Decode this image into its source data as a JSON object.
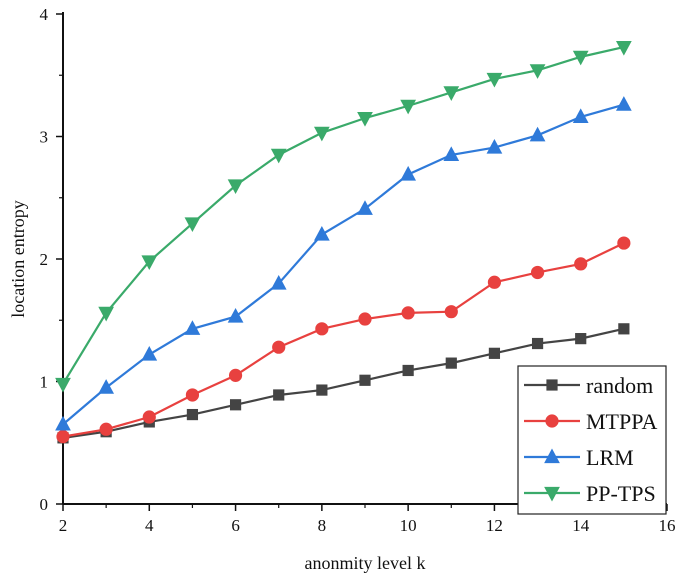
{
  "chart_data": {
    "type": "line",
    "title": "",
    "xlabel": "anonmity level k",
    "ylabel": "location entropy",
    "xlim": [
      2,
      16
    ],
    "ylim": [
      0,
      4
    ],
    "xticks": [
      2,
      4,
      6,
      8,
      10,
      12,
      14,
      16
    ],
    "yticks": [
      0,
      1,
      2,
      3,
      4
    ],
    "x": [
      2,
      3,
      4,
      5,
      6,
      7,
      8,
      9,
      10,
      11,
      12,
      13,
      14,
      15
    ],
    "legend_position": "bottom-right",
    "series": [
      {
        "name": "random",
        "color": "#444444",
        "marker": "square",
        "values": [
          0.54,
          0.59,
          0.67,
          0.73,
          0.81,
          0.89,
          0.93,
          1.01,
          1.09,
          1.15,
          1.23,
          1.31,
          1.35,
          1.43
        ]
      },
      {
        "name": "MTPPA",
        "color": "#e8413f",
        "marker": "circle",
        "values": [
          0.55,
          0.61,
          0.71,
          0.89,
          1.05,
          1.28,
          1.43,
          1.51,
          1.56,
          1.57,
          1.81,
          1.89,
          1.96,
          2.13
        ]
      },
      {
        "name": "LRM",
        "color": "#2f7ad9",
        "marker": "triangle-up",
        "values": [
          0.65,
          0.95,
          1.22,
          1.43,
          1.53,
          1.8,
          2.2,
          2.41,
          2.69,
          2.85,
          2.91,
          3.01,
          3.16,
          3.26
        ]
      },
      {
        "name": "PP-TPS",
        "color": "#3aaa6a",
        "marker": "triangle-down",
        "values": [
          0.98,
          1.56,
          1.98,
          2.29,
          2.6,
          2.85,
          3.03,
          3.15,
          3.25,
          3.36,
          3.47,
          3.54,
          3.65,
          3.73
        ]
      }
    ]
  }
}
